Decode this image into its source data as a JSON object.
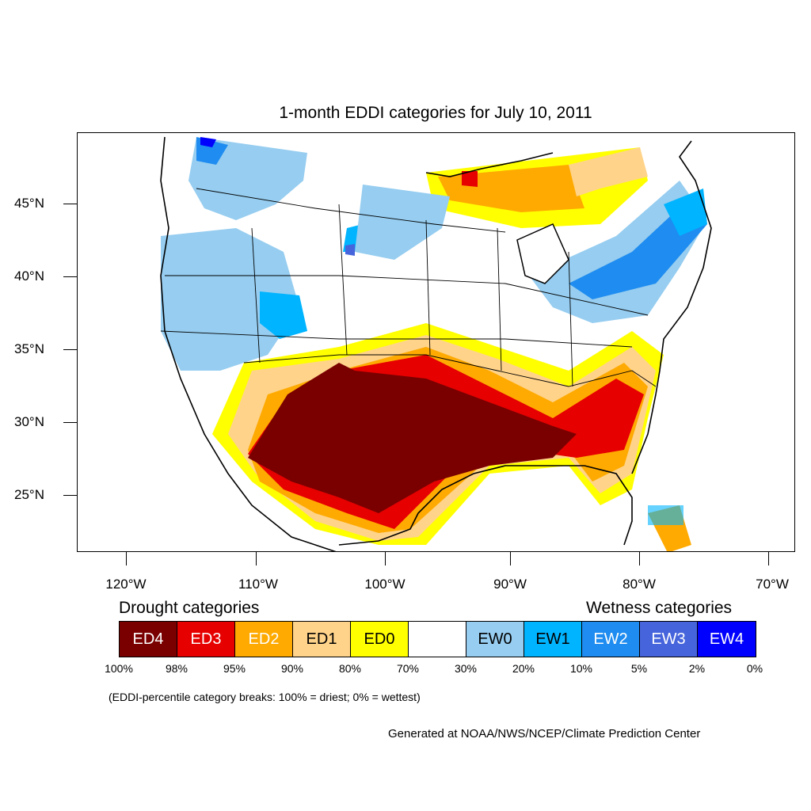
{
  "title": "1-month EDDI categories for July 10, 2011",
  "map": {
    "lat_labels": [
      "45°N",
      "40°N",
      "35°N",
      "30°N",
      "25°N"
    ],
    "lon_labels": [
      "120°W",
      "110°W",
      "100°W",
      "90°W",
      "80°W",
      "70°W"
    ],
    "regions": [
      "United States",
      "Canada",
      "Mexico",
      "Great Lakes",
      "Gulf of Mexico"
    ]
  },
  "legend": {
    "drought_heading": "Drought categories",
    "wetness_heading": "Wetness categories",
    "categories": [
      {
        "label": "ED4",
        "color": "#7a0000",
        "text_color": "#ffffff"
      },
      {
        "label": "ED3",
        "color": "#e60000",
        "text_color": "#ffffff"
      },
      {
        "label": "ED2",
        "color": "#ffaa00",
        "text_color": "#ffffff"
      },
      {
        "label": "ED1",
        "color": "#ffd38a",
        "text_color": "#000000"
      },
      {
        "label": "ED0",
        "color": "#ffff00",
        "text_color": "#000000"
      },
      {
        "label": "",
        "color": "#ffffff",
        "text_color": "#000000"
      },
      {
        "label": "EW0",
        "color": "#96cdf0",
        "text_color": "#000000"
      },
      {
        "label": "EW1",
        "color": "#00b4ff",
        "text_color": "#000000"
      },
      {
        "label": "EW2",
        "color": "#1e8cf0",
        "text_color": "#ffffff"
      },
      {
        "label": "EW3",
        "color": "#4664dc",
        "text_color": "#ffffff"
      },
      {
        "label": "EW4",
        "color": "#0000ff",
        "text_color": "#ffffff"
      }
    ],
    "breaks": [
      "100%",
      "98%",
      "95%",
      "90%",
      "80%",
      "70%",
      "30%",
      "20%",
      "10%",
      "5%",
      "2%",
      "0%"
    ]
  },
  "note": "(EDDI-percentile category breaks: 100% = driest; 0% = wettest)",
  "credit": "Generated at NOAA/NWS/NCEP/Climate Prediction Center"
}
